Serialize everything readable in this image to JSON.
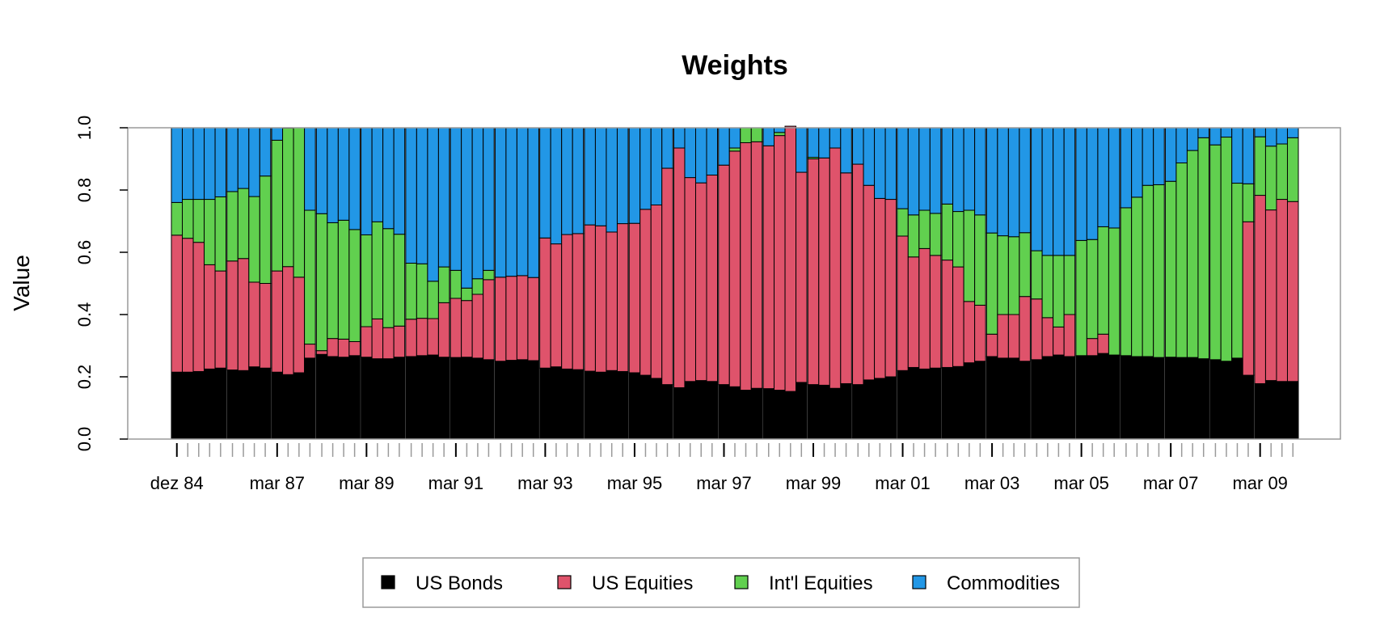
{
  "chart_data": {
    "type": "bar",
    "stacked": true,
    "title": "Weights",
    "xlabel": "",
    "ylabel": "Value",
    "ylim": [
      0,
      1
    ],
    "yticks": [
      "0.0",
      "0.2",
      "0.4",
      "0.6",
      "0.8",
      "1.0"
    ],
    "x_tick_labels": [
      "dez 84",
      "mar 87",
      "mar 89",
      "mar 91",
      "mar 93",
      "mar 95",
      "mar 97",
      "mar 99",
      "mar 01",
      "mar 03",
      "mar 05",
      "mar 07",
      "mar 09"
    ],
    "legend_position": "bottom",
    "bar_groups": [
      [
        "Dec 1984",
        "Mar 1985",
        "Jun 1985",
        "Sep 1985",
        "Dec 1985"
      ],
      [
        "Mar 1986",
        "Jun 1986",
        "Sep 1986",
        "Dec 1986"
      ],
      [
        "Mar 1987",
        "Jun 1987",
        "Sep 1987",
        "Dec 1987"
      ],
      [
        "Mar 1988",
        "Jun 1988",
        "Sep 1988",
        "Dec 1988"
      ],
      [
        "Mar 1989",
        "Jun 1989",
        "Sep 1989",
        "Dec 1989"
      ],
      [
        "Mar 1990",
        "Jun 1990",
        "Sep 1990",
        "Dec 1990"
      ],
      [
        "Mar 1991",
        "Jun 1991",
        "Sep 1991",
        "Dec 1991"
      ],
      [
        "Mar 1992",
        "Jun 1992",
        "Sep 1992",
        "Dec 1992"
      ],
      [
        "Mar 1993",
        "Jun 1993",
        "Sep 1993",
        "Dec 1993"
      ],
      [
        "Mar 1994",
        "Jun 1994",
        "Sep 1994",
        "Dec 1994"
      ],
      [
        "Mar 1995",
        "Jun 1995",
        "Sep 1995",
        "Dec 1995"
      ],
      [
        "Mar 1996",
        "Jun 1996",
        "Sep 1996",
        "Dec 1996"
      ],
      [
        "Mar 1997",
        "Jun 1997",
        "Sep 1997",
        "Dec 1997"
      ],
      [
        "Mar 1998",
        "Jun 1998",
        "Sep 1998",
        "Dec 1998"
      ],
      [
        "Mar 1999",
        "Jun 1999",
        "Sep 1999",
        "Dec 1999"
      ],
      [
        "Mar 2000",
        "Jun 2000",
        "Sep 2000",
        "Dec 2000"
      ],
      [
        "Mar 2001",
        "Jun 2001",
        "Sep 2001",
        "Dec 2001"
      ],
      [
        "Mar 2002",
        "Jun 2002",
        "Sep 2002",
        "Dec 2002"
      ],
      [
        "Mar 2003",
        "Jun 2003",
        "Sep 2003",
        "Dec 2003"
      ],
      [
        "Mar 2004",
        "Jun 2004",
        "Sep 2004",
        "Dec 2004"
      ],
      [
        "Mar 2005",
        "Jun 2005",
        "Sep 2005",
        "Dec 2005"
      ],
      [
        "Mar 2006",
        "Jun 2006",
        "Sep 2006",
        "Dec 2006"
      ],
      [
        "Mar 2007",
        "Jun 2007",
        "Sep 2007",
        "Dec 2007"
      ],
      [
        "Mar 2008",
        "Jun 2008",
        "Sep 2008",
        "Dec 2008"
      ],
      [
        "Mar 2009",
        "Jun 2009",
        "Sep 2009",
        "Dec 2009"
      ]
    ],
    "labeled_quarters": [
      "Dec 1984",
      "Mar 1987",
      "Mar 1989",
      "Mar 1991",
      "Mar 1993",
      "Mar 1995",
      "Mar 1997",
      "Mar 1999",
      "Mar 2001",
      "Mar 2003",
      "Mar 2005",
      "Mar 2007",
      "Mar 2009"
    ],
    "series": [
      {
        "name": "US Bonds",
        "color": "#000000",
        "values": [
          0.215,
          0.215,
          0.217,
          0.225,
          0.228,
          0.222,
          0.22,
          0.232,
          0.228,
          0.215,
          0.207,
          0.213,
          0.26,
          0.272,
          0.265,
          0.263,
          0.268,
          0.263,
          0.258,
          0.258,
          0.263,
          0.265,
          0.268,
          0.27,
          0.263,
          0.262,
          0.263,
          0.26,
          0.255,
          0.25,
          0.253,
          0.255,
          0.252,
          0.228,
          0.232,
          0.225,
          0.223,
          0.218,
          0.215,
          0.22,
          0.217,
          0.213,
          0.205,
          0.195,
          0.175,
          0.165,
          0.185,
          0.188,
          0.185,
          0.175,
          0.168,
          0.157,
          0.163,
          0.162,
          0.157,
          0.153,
          0.182,
          0.175,
          0.173,
          0.163,
          0.178,
          0.175,
          0.19,
          0.195,
          0.2,
          0.22,
          0.23,
          0.225,
          0.228,
          0.23,
          0.233,
          0.245,
          0.25,
          0.265,
          0.26,
          0.26,
          0.25,
          0.255,
          0.265,
          0.27,
          0.265,
          0.268,
          0.268,
          0.275,
          0.27,
          0.268,
          0.265,
          0.265,
          0.262,
          0.263,
          0.262,
          0.262,
          0.258,
          0.255,
          0.25,
          0.26,
          0.205,
          0.178,
          0.188,
          0.185,
          0.185,
          0.178
        ]
      },
      {
        "name": "US Equities",
        "color": "#DF536B",
        "values": [
          0.44,
          0.43,
          0.415,
          0.335,
          0.312,
          0.35,
          0.36,
          0.272,
          0.272,
          0.325,
          0.347,
          0.307,
          0.045,
          0.012,
          0.058,
          0.058,
          0.045,
          0.098,
          0.128,
          0.1,
          0.1,
          0.12,
          0.12,
          0.117,
          0.175,
          0.19,
          0.182,
          0.205,
          0.257,
          0.27,
          0.27,
          0.27,
          0.267,
          0.418,
          0.395,
          0.432,
          0.437,
          0.47,
          0.47,
          0.445,
          0.475,
          0.48,
          0.533,
          0.557,
          0.695,
          0.77,
          0.655,
          0.635,
          0.663,
          0.705,
          0.757,
          0.795,
          0.792,
          0.78,
          0.818,
          0.852,
          0.675,
          0.725,
          0.73,
          0.772,
          0.677,
          0.708,
          0.625,
          0.578,
          0.57,
          0.432,
          0.355,
          0.387,
          0.362,
          0.345,
          0.32,
          0.197,
          0.18,
          0.072,
          0.14,
          0.14,
          0.208,
          0.195,
          0.125,
          0.09,
          0.135,
          0.0,
          0.055,
          0.062,
          0.0,
          0.0,
          0.0,
          0.0,
          0.0,
          0.0,
          0.0,
          0.0,
          0.0,
          0.0,
          0.0,
          0.0,
          0.493,
          0.605,
          0.548,
          0.585,
          0.578,
          0.635
        ]
      },
      {
        "name": "Int'l Equities",
        "color": "#61D04F",
        "values": [
          0.105,
          0.125,
          0.138,
          0.21,
          0.238,
          0.223,
          0.225,
          0.275,
          0.345,
          0.42,
          0.445,
          0.48,
          0.43,
          0.44,
          0.372,
          0.382,
          0.36,
          0.295,
          0.312,
          0.318,
          0.295,
          0.18,
          0.175,
          0.12,
          0.115,
          0.09,
          0.04,
          0.05,
          0.03,
          0.0,
          0.0,
          0.0,
          0.0,
          0.0,
          0.0,
          0.0,
          0.0,
          0.0,
          0.0,
          0.0,
          0.0,
          0.0,
          0.0,
          0.0,
          0.0,
          0.0,
          0.0,
          0.0,
          0.0,
          0.0,
          0.01,
          0.048,
          0.045,
          0.0,
          0.01,
          0.0,
          0.0,
          0.005,
          0.0,
          0.0,
          0.0,
          0.0,
          0.0,
          0.0,
          0.0,
          0.088,
          0.135,
          0.123,
          0.135,
          0.18,
          0.178,
          0.293,
          0.29,
          0.325,
          0.253,
          0.25,
          0.205,
          0.155,
          0.2,
          0.23,
          0.19,
          0.37,
          0.318,
          0.345,
          0.408,
          0.475,
          0.512,
          0.55,
          0.555,
          0.565,
          0.625,
          0.665,
          0.71,
          0.69,
          0.72,
          0.562,
          0.122,
          0.188,
          0.205,
          0.178,
          0.205,
          0.142
        ]
      },
      {
        "name": "Commodities",
        "color": "#2297E6",
        "values": [
          0.24,
          0.23,
          0.23,
          0.23,
          0.222,
          0.205,
          0.195,
          0.221,
          0.155,
          0.04,
          0.001,
          0.0,
          0.265,
          0.276,
          0.305,
          0.297,
          0.327,
          0.344,
          0.302,
          0.324,
          0.342,
          0.435,
          0.437,
          0.493,
          0.447,
          0.458,
          0.515,
          0.485,
          0.458,
          0.48,
          0.477,
          0.475,
          0.481,
          0.354,
          0.373,
          0.343,
          0.34,
          0.312,
          0.315,
          0.335,
          0.308,
          0.307,
          0.262,
          0.248,
          0.13,
          0.065,
          0.16,
          0.177,
          0.152,
          0.12,
          0.065,
          0.0,
          0.0,
          0.058,
          0.015,
          0.0,
          0.143,
          0.095,
          0.097,
          0.065,
          0.145,
          0.117,
          0.185,
          0.227,
          0.23,
          0.26,
          0.28,
          0.265,
          0.275,
          0.245,
          0.269,
          0.265,
          0.28,
          0.338,
          0.347,
          0.35,
          0.337,
          0.395,
          0.41,
          0.41,
          0.41,
          0.362,
          0.359,
          0.318,
          0.322,
          0.257,
          0.223,
          0.185,
          0.183,
          0.172,
          0.113,
          0.073,
          0.032,
          0.055,
          0.03,
          0.178,
          0.18,
          0.029,
          0.059,
          0.052,
          0.032,
          0.045
        ]
      }
    ]
  }
}
